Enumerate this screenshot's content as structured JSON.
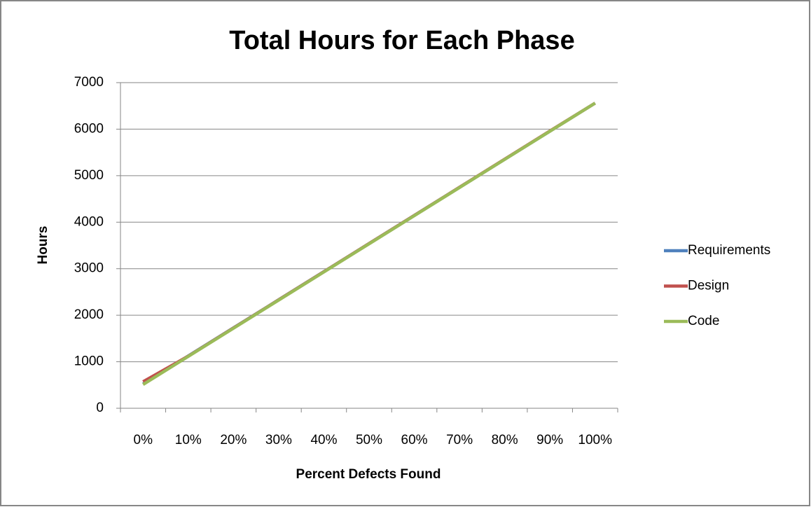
{
  "chart_data": {
    "type": "line",
    "title": "Total Hours for Each Phase",
    "x_label": "Percent Defects Found",
    "y_label": "Hours",
    "categories": [
      "0%",
      "10%",
      "20%",
      "30%",
      "40%",
      "50%",
      "60%",
      "70%",
      "80%",
      "90%",
      "100%"
    ],
    "series": [
      {
        "name": "Requirements",
        "color": "#4f81bd",
        "values": [
          520,
          1124,
          1728,
          2332,
          2936,
          3540,
          4144,
          4748,
          5352,
          5956,
          6560
        ]
      },
      {
        "name": "Design",
        "color": "#c0504d",
        "values": [
          570,
          1120,
          1725,
          2330,
          2935,
          3540,
          4145,
          4750,
          5355,
          5960,
          6560
        ]
      },
      {
        "name": "Code",
        "color": "#9bbb59",
        "values": [
          510,
          1115,
          1720,
          2325,
          2930,
          3535,
          4140,
          4745,
          5350,
          5955,
          6560
        ]
      }
    ],
    "ylim": [
      0,
      7000
    ],
    "yticks": [
      0,
      1000,
      2000,
      3000,
      4000,
      5000,
      6000,
      7000
    ],
    "grid": true,
    "legend": "right"
  }
}
